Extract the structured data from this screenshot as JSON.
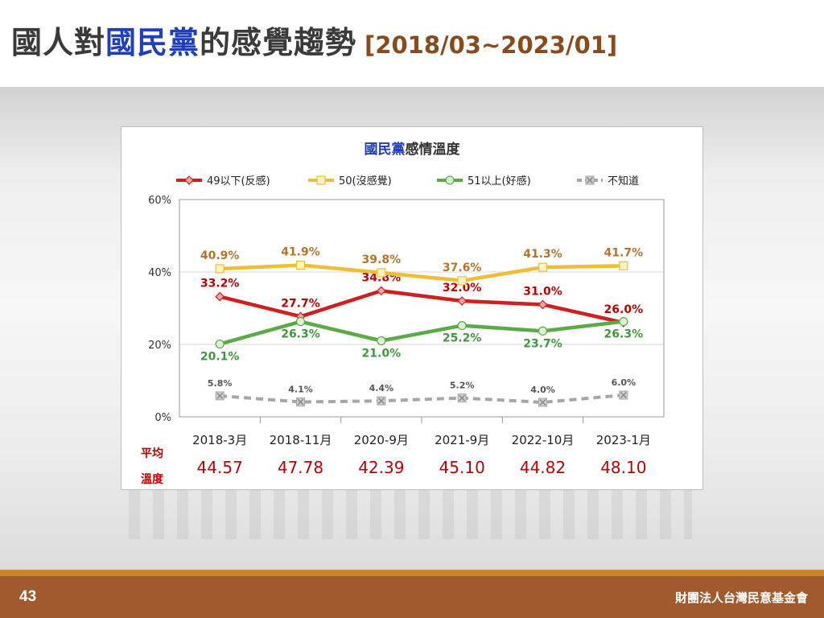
{
  "slide": {
    "title_part1": "國人對",
    "title_highlight": "國民黨",
    "title_part2": "的感覺趨勢",
    "title_range": "[2018/03~2023/01]",
    "page_number": "43",
    "organization": "財團法人台灣民意基金會"
  },
  "colors": {
    "title_text": "#3a3a3a",
    "title_highlight": "#1f3fbf",
    "title_range": "#8a4a1c",
    "footer": "#a15a2e",
    "footer_stripe": "#c8862a",
    "average_label": "#c00000",
    "average_value": "#c00000"
  },
  "chart_data": {
    "type": "line",
    "title_highlight": "國民黨",
    "title_rest": "感情溫度",
    "categories": [
      "2018-3月",
      "2018-11月",
      "2020-9月",
      "2021-9月",
      "2022-10月",
      "2023-1月"
    ],
    "ylim": [
      0,
      60
    ],
    "yticks": [
      "0%",
      "20%",
      "40%",
      "60%"
    ],
    "ytick_values": [
      0,
      20,
      40,
      60
    ],
    "grid": true,
    "legend_position": "top",
    "series": [
      {
        "name": "49以下(反感)",
        "values": [
          33.2,
          27.7,
          34.8,
          32.0,
          31.0,
          26.0
        ],
        "labels": [
          "33.2%",
          "27.7%",
          "34.8%",
          "32.0%",
          "31.0%",
          "26.0%"
        ],
        "color": "#d01f1f",
        "label_color": "#c00000",
        "marker": "diamond",
        "dashed": false,
        "label_pos": "above"
      },
      {
        "name": "50(沒感覺)",
        "values": [
          40.9,
          41.9,
          39.8,
          37.6,
          41.3,
          41.7
        ],
        "labels": [
          "40.9%",
          "41.9%",
          "39.8%",
          "37.6%",
          "41.3%",
          "41.7%"
        ],
        "color": "#f0be32",
        "label_color": "#b8732a",
        "marker": "square",
        "dashed": false,
        "label_pos": "above"
      },
      {
        "name": "51以上(好感)",
        "values": [
          20.1,
          26.3,
          21.0,
          25.2,
          23.7,
          26.3
        ],
        "labels": [
          "20.1%",
          "26.3%",
          "21.0%",
          "25.2%",
          "23.7%",
          "26.3%"
        ],
        "color": "#5aaa46",
        "label_color": "#3c9a3c",
        "marker": "circle",
        "dashed": false,
        "label_pos": "below"
      },
      {
        "name": "不知道",
        "values": [
          5.8,
          4.1,
          4.4,
          5.2,
          4.0,
          6.0
        ],
        "labels": [
          "5.8%",
          "4.1%",
          "4.4%",
          "5.2%",
          "4.0%",
          "6.0%"
        ],
        "color": "#a6a6a6",
        "label_color": "#555555",
        "marker": "x",
        "dashed": true,
        "label_pos": "above"
      }
    ],
    "average_label_line1": "平均",
    "average_label_line2": "溫度",
    "averages": [
      "44.57",
      "47.78",
      "42.39",
      "45.10",
      "44.82",
      "48.10"
    ]
  }
}
